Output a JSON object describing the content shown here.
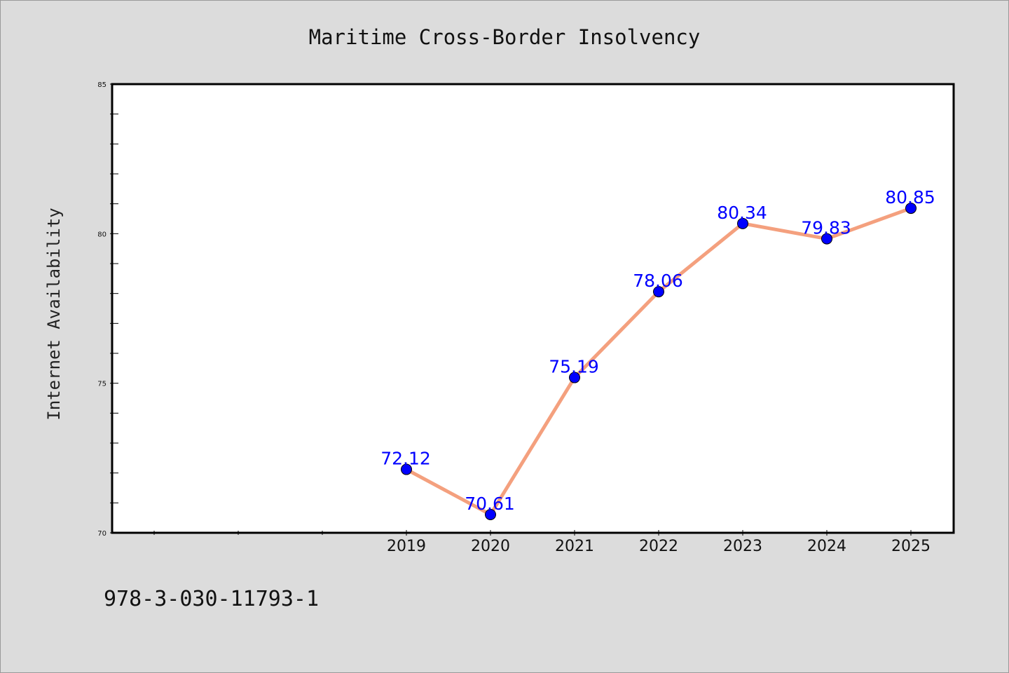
{
  "chart_data": {
    "type": "line",
    "title": "Maritime Cross-Border Insolvency",
    "xlabel": "",
    "ylabel": "Internet Availability",
    "categories": [
      "2019",
      "2020",
      "2021",
      "2022",
      "2023",
      "2024",
      "2025"
    ],
    "values": [
      72.12,
      70.61,
      75.19,
      78.06,
      80.34,
      79.83,
      80.85
    ],
    "data_labels": [
      "72.12",
      "70.61",
      "75.19",
      "78.06",
      "80.34",
      "79.83",
      "80.85"
    ],
    "ylim": [
      70,
      85
    ],
    "yticks": [
      70,
      75,
      80,
      85
    ],
    "grid": false,
    "legend": "none",
    "line_color": "#f4a07e",
    "marker_color": "#0000ff",
    "label_color": "#0000ff"
  },
  "footer": {
    "isbn": "978-3-030-11793-1"
  }
}
